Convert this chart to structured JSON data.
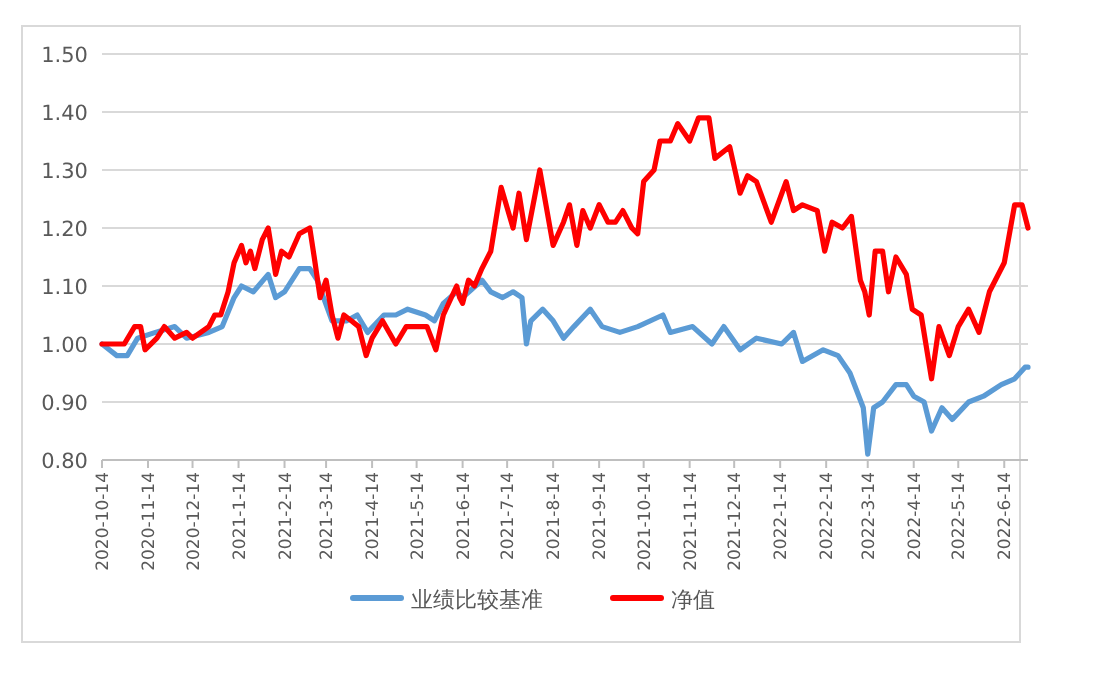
{
  "chart_data": {
    "type": "line",
    "legend": "bottom",
    "grid": "y",
    "xlim": [
      "2020-10-14",
      "2022-06-30"
    ],
    "ylim": [
      0.8,
      1.5
    ],
    "yticks": [
      {
        "value": 0.8,
        "label": "0.80"
      },
      {
        "value": 0.9,
        "label": "0.90"
      },
      {
        "value": 1.0,
        "label": "1.00"
      },
      {
        "value": 1.1,
        "label": "1.10"
      },
      {
        "value": 1.2,
        "label": "1.20"
      },
      {
        "value": 1.3,
        "label": "1.30"
      },
      {
        "value": 1.4,
        "label": "1.40"
      },
      {
        "value": 1.5,
        "label": "1.50"
      }
    ],
    "xticks": [
      {
        "value": "2020-10-14",
        "label": "2020-10-14"
      },
      {
        "value": "2020-11-14",
        "label": "2020-11-14"
      },
      {
        "value": "2020-12-14",
        "label": "2020-12-14"
      },
      {
        "value": "2021-01-14",
        "label": "2021-1-14"
      },
      {
        "value": "2021-02-14",
        "label": "2021-2-14"
      },
      {
        "value": "2021-03-14",
        "label": "2021-3-14"
      },
      {
        "value": "2021-04-14",
        "label": "2021-4-14"
      },
      {
        "value": "2021-05-14",
        "label": "2021-5-14"
      },
      {
        "value": "2021-06-14",
        "label": "2021-6-14"
      },
      {
        "value": "2021-07-14",
        "label": "2021-7-14"
      },
      {
        "value": "2021-08-14",
        "label": "2021-8-14"
      },
      {
        "value": "2021-09-14",
        "label": "2021-9-14"
      },
      {
        "value": "2021-10-14",
        "label": "2021-10-14"
      },
      {
        "value": "2021-11-14",
        "label": "2021-11-14"
      },
      {
        "value": "2021-12-14",
        "label": "2021-12-14"
      },
      {
        "value": "2022-01-14",
        "label": "2022-1-14"
      },
      {
        "value": "2022-02-14",
        "label": "2022-2-14"
      },
      {
        "value": "2022-03-14",
        "label": "2022-3-14"
      },
      {
        "value": "2022-04-14",
        "label": "2022-4-14"
      },
      {
        "value": "2022-05-14",
        "label": "2022-5-14"
      },
      {
        "value": "2022-06-14",
        "label": "2022-6-14"
      }
    ],
    "series": [
      {
        "name": "业绩比较基准",
        "color": "#5b9bd5",
        "x": [
          "2020-10-14",
          "2020-10-24",
          "2020-10-31",
          "2020-11-07",
          "2020-11-19",
          "2020-12-02",
          "2020-12-10",
          "2020-12-25",
          "2021-01-03",
          "2021-01-11",
          "2021-01-16",
          "2021-01-24",
          "2021-02-03",
          "2021-02-08",
          "2021-02-14",
          "2021-02-24",
          "2021-03-03",
          "2021-03-08",
          "2021-03-18",
          "2021-03-28",
          "2021-04-04",
          "2021-04-11",
          "2021-04-22",
          "2021-04-30",
          "2021-05-08",
          "2021-05-20",
          "2021-05-26",
          "2021-06-01",
          "2021-06-10",
          "2021-06-14",
          "2021-06-27",
          "2021-07-03",
          "2021-07-11",
          "2021-07-18",
          "2021-07-24",
          "2021-07-27",
          "2021-07-30",
          "2021-08-07",
          "2021-08-14",
          "2021-08-21",
          "2021-08-28",
          "2021-09-08",
          "2021-09-16",
          "2021-09-28",
          "2021-10-10",
          "2021-10-27",
          "2021-11-01",
          "2021-11-16",
          "2021-11-29",
          "2021-12-07",
          "2021-12-18",
          "2021-12-29",
          "2022-01-15",
          "2022-01-23",
          "2022-01-29",
          "2022-02-12",
          "2022-02-22",
          "2022-03-02",
          "2022-03-11",
          "2022-03-14",
          "2022-03-18",
          "2022-03-24",
          "2022-04-02",
          "2022-04-09",
          "2022-04-14",
          "2022-04-21",
          "2022-04-26",
          "2022-05-03",
          "2022-05-10",
          "2022-05-21",
          "2022-05-31",
          "2022-06-12",
          "2022-06-21",
          "2022-06-28",
          "2022-06-30"
        ],
        "values": [
          1.0,
          0.98,
          0.98,
          1.01,
          1.02,
          1.03,
          1.01,
          1.02,
          1.03,
          1.08,
          1.1,
          1.09,
          1.12,
          1.08,
          1.09,
          1.13,
          1.13,
          1.11,
          1.04,
          1.04,
          1.05,
          1.02,
          1.05,
          1.05,
          1.06,
          1.05,
          1.04,
          1.07,
          1.09,
          1.08,
          1.11,
          1.09,
          1.08,
          1.09,
          1.08,
          1.0,
          1.04,
          1.06,
          1.04,
          1.01,
          1.03,
          1.06,
          1.03,
          1.02,
          1.03,
          1.05,
          1.02,
          1.03,
          1.0,
          1.03,
          0.99,
          1.01,
          1.0,
          1.02,
          0.97,
          0.99,
          0.98,
          0.95,
          0.89,
          0.81,
          0.89,
          0.9,
          0.93,
          0.93,
          0.91,
          0.9,
          0.85,
          0.89,
          0.87,
          0.9,
          0.91,
          0.93,
          0.94,
          0.96,
          0.96
        ]
      },
      {
        "name": "净值",
        "color": "#ff0000",
        "x": [
          "2020-10-14",
          "2020-10-29",
          "2020-11-05",
          "2020-11-09",
          "2020-11-12",
          "2020-11-20",
          "2020-11-25",
          "2020-12-02",
          "2020-12-10",
          "2020-12-14",
          "2020-12-25",
          "2020-12-29",
          "2021-01-02",
          "2021-01-07",
          "2021-01-11",
          "2021-01-16",
          "2021-01-19",
          "2021-01-22",
          "2021-01-25",
          "2021-01-30",
          "2021-02-03",
          "2021-02-08",
          "2021-02-12",
          "2021-02-17",
          "2021-02-24",
          "2021-03-03",
          "2021-03-06",
          "2021-03-10",
          "2021-03-14",
          "2021-03-18",
          "2021-03-22",
          "2021-03-26",
          "2021-03-31",
          "2021-04-05",
          "2021-04-10",
          "2021-04-14",
          "2021-04-21",
          "2021-04-30",
          "2021-05-07",
          "2021-05-17",
          "2021-05-21",
          "2021-05-27",
          "2021-06-01",
          "2021-06-10",
          "2021-06-12",
          "2021-06-14",
          "2021-06-18",
          "2021-06-22",
          "2021-06-27",
          "2021-07-03",
          "2021-07-10",
          "2021-07-18",
          "2021-07-22",
          "2021-07-27",
          "2021-08-05",
          "2021-08-14",
          "2021-08-21",
          "2021-08-25",
          "2021-08-30",
          "2021-09-03",
          "2021-09-08",
          "2021-09-14",
          "2021-09-20",
          "2021-09-25",
          "2021-09-30",
          "2021-10-06",
          "2021-10-10",
          "2021-10-14",
          "2021-10-21",
          "2021-10-25",
          "2021-11-01",
          "2021-11-06",
          "2021-11-14",
          "2021-11-20",
          "2021-11-27",
          "2021-12-01",
          "2021-12-11",
          "2021-12-18",
          "2021-12-23",
          "2021-12-29",
          "2022-01-08",
          "2022-01-18",
          "2022-01-23",
          "2022-01-29",
          "2022-02-08",
          "2022-02-13",
          "2022-02-18",
          "2022-02-25",
          "2022-03-03",
          "2022-03-09",
          "2022-03-12",
          "2022-03-15",
          "2022-03-19",
          "2022-03-24",
          "2022-03-28",
          "2022-04-02",
          "2022-04-09",
          "2022-04-13",
          "2022-04-19",
          "2022-04-26",
          "2022-05-01",
          "2022-05-08",
          "2022-05-14",
          "2022-05-21",
          "2022-05-28",
          "2022-06-04",
          "2022-06-14",
          "2022-06-21",
          "2022-06-26",
          "2022-06-30"
        ],
        "values": [
          1.0,
          1.0,
          1.03,
          1.03,
          0.99,
          1.01,
          1.03,
          1.01,
          1.02,
          1.01,
          1.03,
          1.05,
          1.05,
          1.09,
          1.14,
          1.17,
          1.14,
          1.16,
          1.13,
          1.18,
          1.2,
          1.12,
          1.16,
          1.15,
          1.19,
          1.2,
          1.15,
          1.08,
          1.11,
          1.05,
          1.01,
          1.05,
          1.04,
          1.03,
          0.98,
          1.01,
          1.04,
          1.0,
          1.03,
          1.03,
          1.03,
          0.99,
          1.05,
          1.1,
          1.08,
          1.07,
          1.11,
          1.1,
          1.13,
          1.16,
          1.27,
          1.2,
          1.26,
          1.18,
          1.3,
          1.17,
          1.21,
          1.24,
          1.17,
          1.23,
          1.2,
          1.24,
          1.21,
          1.21,
          1.23,
          1.2,
          1.19,
          1.28,
          1.3,
          1.35,
          1.35,
          1.38,
          1.35,
          1.39,
          1.39,
          1.32,
          1.34,
          1.26,
          1.29,
          1.28,
          1.21,
          1.28,
          1.23,
          1.24,
          1.23,
          1.16,
          1.21,
          1.2,
          1.22,
          1.11,
          1.09,
          1.05,
          1.16,
          1.16,
          1.09,
          1.15,
          1.12,
          1.06,
          1.05,
          0.94,
          1.03,
          0.98,
          1.03,
          1.06,
          1.02,
          1.09,
          1.14,
          1.24,
          1.24,
          1.2
        ]
      }
    ]
  }
}
